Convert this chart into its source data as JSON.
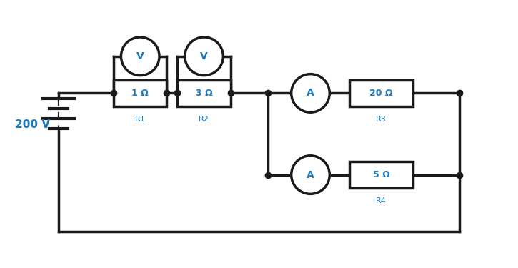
{
  "background_color": "#ffffff",
  "line_color": "#1a1a1a",
  "text_color": "#1a7abf",
  "line_width": 2.5,
  "voltage_label": "200 V",
  "resistors": [
    {
      "label": "1 Ω",
      "sublabel": "R1"
    },
    {
      "label": "3 Ω",
      "sublabel": "R2"
    },
    {
      "label": "20 Ω",
      "sublabel": "R3"
    },
    {
      "label": "5 Ω",
      "sublabel": "R4"
    }
  ],
  "voltmeter_label": "V",
  "ammeter_label": "A"
}
